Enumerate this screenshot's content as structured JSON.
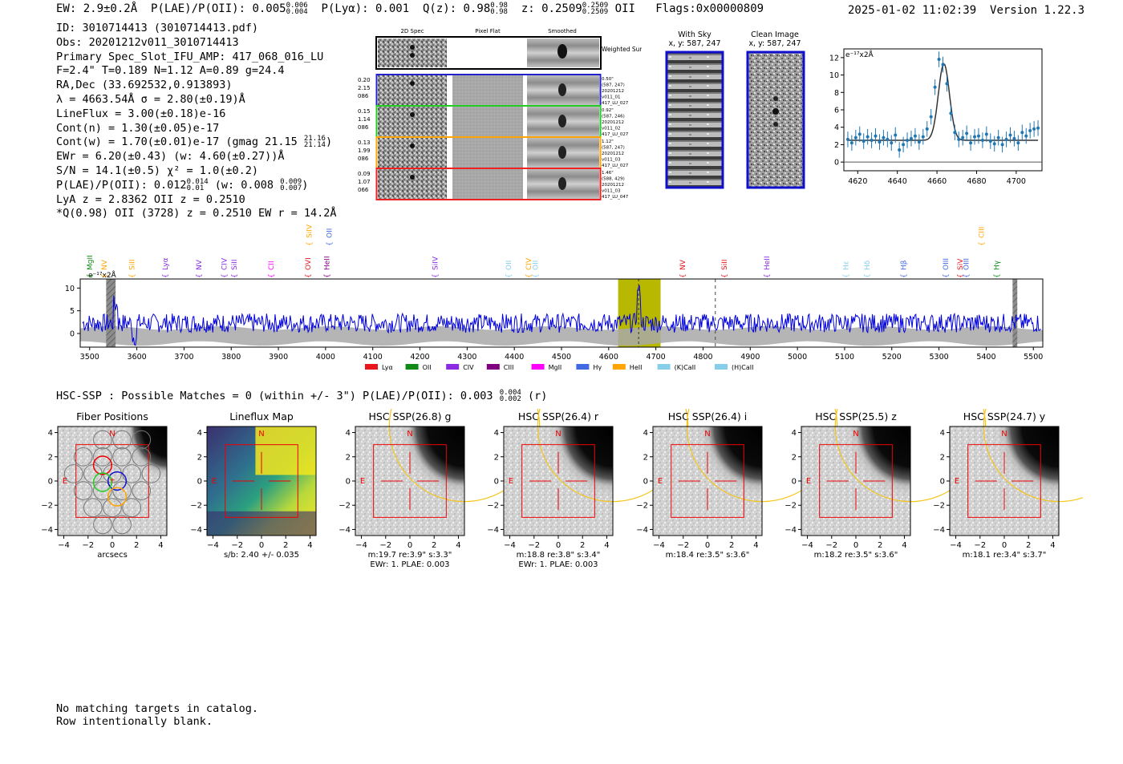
{
  "header": {
    "ew": "EW: 2.9±0.2Å",
    "plae_label": "P(LAE)/P(OII): 0.005",
    "plae_hi": "0.006",
    "plae_lo": "0.004",
    "plya": "P(Lyα): 0.001",
    "q_label": "Q(z): 0.98",
    "q_hi": "0.98",
    "q_lo": "0.98",
    "z_label": "z: 0.2509",
    "z_hi": "0.2509",
    "z_lo": "0.2509",
    "z_line": "OII",
    "flags": "Flags:0x00000809",
    "timestamp": "2025-01-02 11:02:39",
    "version": "Version 1.22.3"
  },
  "info": {
    "id": "ID: 3010714413 (3010714413.pdf)",
    "obs": "Obs: 20201212v011_3010714413",
    "primary": "Primary Spec_Slot_IFU_AMP: 417_068_016_LU",
    "fiber": "F=2.4\"  T=0.189  N=1.12  A=0.89  g=24.4",
    "radec": "RA,Dec (33.692532,0.913893)",
    "lambda": "λ = 4663.54Å  σ = 2.80(±0.19)Å",
    "lineflux": "LineFlux = 3.00(±0.18)e-16",
    "contn": "Cont(n) = 1.30(±0.05)e-17",
    "contw_label": "Cont(w) = 1.70(±0.01)e-17 (gmag 21.15",
    "contw_hi": "21.16",
    "contw_lo": "21.14",
    "contw_end": ")",
    "ewr": "EWr = 6.20(±0.43) (w: 4.60(±0.27))Å",
    "sn": "S/N = 14.1(±0.5)  χ² = 1.0(±0.2)",
    "plae_label": "P(LAE)/P(OII): 0.012",
    "plae_hi": "0.014",
    "plae_lo": "0.01",
    "plae_w": "(w: 0.008",
    "plae_w_hi": "0.009",
    "plae_w_lo": "0.007",
    "plae_end": ")",
    "lya": "LyA z = 2.8362  OII z = 0.2510",
    "q_line": "*Q(0.98) OII (3728) z = 0.2510  EW r = 14.2Å"
  },
  "cutouts": {
    "col_headers": [
      "2D Spec",
      "Pixel Flat",
      "Smoothed"
    ],
    "weighted_label": "Weighted Sum",
    "rows": [
      {
        "color": "#2222cc",
        "left": [
          "0.20",
          "2.15",
          "086"
        ],
        "right": [
          "0.50\"",
          "(587, 247)",
          "20201212",
          "v011_01",
          "417_LU_027"
        ]
      },
      {
        "color": "#22cc22",
        "left": [
          "0.15",
          "1.14",
          "086"
        ],
        "right": [
          "0.92\"",
          "(587, 246)",
          "20201212",
          "v011_02",
          "417_LU_027"
        ]
      },
      {
        "color": "#ffa500",
        "left": [
          "0.13",
          "1.99",
          "086"
        ],
        "right": [
          "1.12\"",
          "(587, 247)",
          "20201212",
          "v011_03",
          "417_LU_027"
        ]
      },
      {
        "color": "#ee2222",
        "left": [
          "0.09",
          "1.07",
          "066"
        ],
        "right": [
          "1.46\"",
          "(588, 429)",
          "20201212",
          "v011_03",
          "417_LU_047"
        ]
      }
    ]
  },
  "sky_panels": {
    "with_sky_title": "With Sky",
    "with_sky_xy": "x, y: 587, 247",
    "clean_title": "Clean Image",
    "clean_xy": "x, y: 587, 247"
  },
  "hsc": {
    "line": "HSC-SSP : Possible Matches = 0 (within +/- 3\")  P(LAE)/P(OII): 0.003",
    "plae_hi": "0.004",
    "plae_lo": "0.002",
    "band": "(r)"
  },
  "footer": {
    "line1": "No matching targets in catalog.",
    "line2": "Row intentionally blank."
  },
  "chart_data": [
    {
      "id": "zoom-line-fit",
      "type": "scatter",
      "ylabel": "e⁻¹⁷x2Å",
      "xlim": [
        4613,
        4713
      ],
      "ylim": [
        -1,
        13
      ],
      "xticks": [
        4620,
        4640,
        4660,
        4680,
        4700
      ],
      "yticks": [
        0,
        2,
        4,
        6,
        8,
        10,
        12
      ],
      "x": [
        4615,
        4617,
        4619,
        4621,
        4623,
        4625,
        4627,
        4629,
        4631,
        4633,
        4635,
        4637,
        4639,
        4641,
        4643,
        4645,
        4647,
        4649,
        4651,
        4653,
        4655,
        4657,
        4659,
        4661,
        4663,
        4665,
        4667,
        4669,
        4671,
        4673,
        4675,
        4677,
        4679,
        4681,
        4683,
        4685,
        4687,
        4689,
        4691,
        4693,
        4695,
        4697,
        4699,
        4701,
        4703,
        4705,
        4707,
        4709,
        4711
      ],
      "y": [
        2.6,
        2.2,
        2.8,
        3.2,
        2.4,
        2.9,
        2.5,
        3.0,
        2.3,
        2.8,
        2.6,
        2.2,
        3.1,
        1.4,
        2.0,
        2.5,
        2.7,
        3.0,
        2.3,
        2.9,
        3.8,
        5.2,
        8.6,
        11.8,
        11.2,
        9.0,
        5.6,
        3.4,
        2.6,
        2.8,
        3.3,
        2.2,
        2.9,
        3.0,
        2.5,
        3.2,
        2.4,
        2.1,
        2.8,
        2.0,
        2.6,
        3.1,
        2.7,
        2.2,
        3.4,
        3.0,
        3.6,
        3.8,
        3.9
      ],
      "yerr": 0.9,
      "fit": {
        "center": 4663.5,
        "sigma": 2.8,
        "amp": 8.8,
        "continuum": 2.5
      }
    },
    {
      "id": "full-spectrum",
      "type": "line",
      "ylabel": "e⁻¹⁷x2Å",
      "xlim": [
        3480,
        5520
      ],
      "ylim": [
        -3,
        12
      ],
      "xticks": [
        3500,
        3600,
        3700,
        3800,
        3900,
        4000,
        4100,
        4200,
        4300,
        4400,
        4500,
        4600,
        4700,
        4800,
        4900,
        5000,
        5100,
        5200,
        5300,
        5400,
        5500
      ],
      "yticks": [
        0,
        5,
        10
      ],
      "highlight_range": [
        4620,
        4710
      ],
      "hatched_ranges": [
        [
          3535,
          3555
        ],
        [
          5456,
          5466
        ]
      ],
      "line_center": 4663.5,
      "dashed_line": 4826,
      "legend": [
        {
          "label": "Lyα",
          "color": "#e8151b"
        },
        {
          "label": "OII",
          "color": "#0e8a16"
        },
        {
          "label": "CIV",
          "color": "#8a2be2"
        },
        {
          "label": "CIII",
          "color": "#800080"
        },
        {
          "label": "MgII",
          "color": "#ff00ff"
        },
        {
          "label": "Hγ",
          "color": "#4169e1"
        },
        {
          "label": "HeII",
          "color": "#ffa500"
        },
        {
          "label": "(K)CaII",
          "color": "#87ceeb"
        },
        {
          "label": "(H)CaII",
          "color": "#87ceeb"
        }
      ],
      "line_markers": [
        {
          "label": "MgII",
          "x": 3500,
          "color": "#0e8a16",
          "tier": 0
        },
        {
          "label": "NV",
          "x": 3531,
          "color": "#ffa500",
          "tier": 0
        },
        {
          "label": "SiII",
          "x": 3590,
          "color": "#ffa500",
          "tier": 0
        },
        {
          "label": "Lyα",
          "x": 3660,
          "color": "#8a2be2",
          "tier": 0
        },
        {
          "label": "NV",
          "x": 3732,
          "color": "#8a2be2",
          "tier": 0
        },
        {
          "label": "CIV",
          "x": 3785,
          "color": "#8a2be2",
          "tier": 0
        },
        {
          "label": "SiII",
          "x": 3806,
          "color": "#8a2be2",
          "tier": 0
        },
        {
          "label": "CII",
          "x": 3885,
          "color": "#ff00ff",
          "tier": 0
        },
        {
          "label": "OVI",
          "x": 3963,
          "color": "#e8151b",
          "tier": 0
        },
        {
          "label": "HeII",
          "x": 4003,
          "color": "#800080",
          "tier": 0
        },
        {
          "label": "SiIV",
          "x": 3965,
          "color": "#ffa500",
          "tier": 1
        },
        {
          "label": "OII",
          "x": 4008,
          "color": "#4169e1",
          "tier": 1
        },
        {
          "label": "SiIV",
          "x": 4232,
          "color": "#8a2be2",
          "tier": 0
        },
        {
          "label": "OII",
          "x": 4388,
          "color": "#87ceeb",
          "tier": 0
        },
        {
          "label": "CIV",
          "x": 4430,
          "color": "#ffa500",
          "tier": 0
        },
        {
          "label": "OII",
          "x": 4445,
          "color": "#87ceeb",
          "tier": 0
        },
        {
          "label": "NV",
          "x": 4757,
          "color": "#e8151b",
          "tier": 0
        },
        {
          "label": "SiII",
          "x": 4845,
          "color": "#e8151b",
          "tier": 0
        },
        {
          "label": "HeII",
          "x": 4935,
          "color": "#8a2be2",
          "tier": 0
        },
        {
          "label": "Hε",
          "x": 5103,
          "color": "#87ceeb",
          "tier": 0
        },
        {
          "label": "Hδ",
          "x": 5148,
          "color": "#87ceeb",
          "tier": 0
        },
        {
          "label": "Hβ",
          "x": 5225,
          "color": "#4169e1",
          "tier": 0
        },
        {
          "label": "OIII",
          "x": 5314,
          "color": "#4169e1",
          "tier": 0
        },
        {
          "label": "SiV",
          "x": 5345,
          "color": "#e8151b",
          "tier": 0
        },
        {
          "label": "OIII",
          "x": 5358,
          "color": "#4169e1",
          "tier": 0
        },
        {
          "label": "Hγ",
          "x": 5422,
          "color": "#0e8a16",
          "tier": 0
        },
        {
          "label": "CIII",
          "x": 5390,
          "color": "#ffa500",
          "tier": 1
        }
      ]
    },
    {
      "id": "image-panels",
      "type": "heatmap",
      "xlim": [
        -4.5,
        4.5
      ],
      "ylim": [
        -4.5,
        4.5
      ],
      "ticks": [
        -4,
        -2,
        0,
        2,
        4
      ],
      "panels": [
        {
          "title": "Fiber Positions",
          "caption1": "arcsecs",
          "caption2": ""
        },
        {
          "title": "Lineflux Map",
          "caption1": "s/b: 2.40 +/- 0.035",
          "caption2": ""
        },
        {
          "title": "HSC SSP(26.8) g",
          "caption1": "m:19.7  re:3.9\"  s:3.3\"",
          "caption2": "EWr: 1. PLAE: 0.003"
        },
        {
          "title": "HSC SSP(26.4) r",
          "caption1": "m:18.8  re:3.8\"  s:3.4\"",
          "caption2": "EWr: 1. PLAE: 0.003"
        },
        {
          "title": "HSC SSP(26.4) i",
          "caption1": "m:18.4  re:3.5\"  s:3.6\"",
          "caption2": ""
        },
        {
          "title": "HSC SSP(25.5) z",
          "caption1": "m:18.2  re:3.5\"  s:3.6\"",
          "caption2": ""
        },
        {
          "title": "HSC SSP(24.7) y",
          "caption1": "m:18.1  re:3.4\"  s:3.7\"",
          "caption2": ""
        }
      ],
      "compass_n": "N",
      "compass_e": "E"
    }
  ]
}
